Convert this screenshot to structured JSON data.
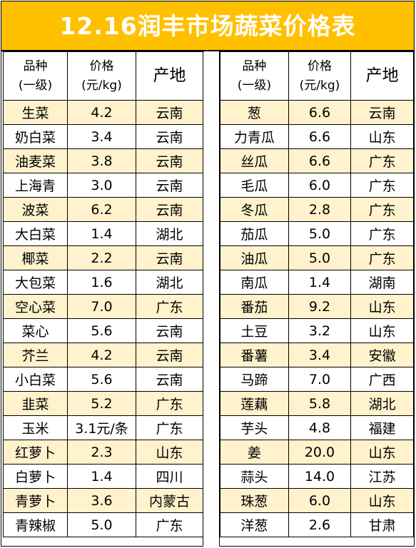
{
  "title": "12.16润丰市场蔬菜价格表",
  "colors": {
    "title_bg": "#ffc000",
    "row_shade": "#fff2cc"
  },
  "headers": {
    "variety_line1": "品种",
    "variety_line2": "(一级)",
    "price_line1": "价格",
    "price_line2": "(元/kg)",
    "origin": "产地"
  },
  "left_rows": [
    {
      "name": "生菜",
      "price": "4.2",
      "origin": "云南"
    },
    {
      "name": "奶白菜",
      "price": "3.4",
      "origin": "云南"
    },
    {
      "name": "油麦菜",
      "price": "3.8",
      "origin": "云南"
    },
    {
      "name": "上海青",
      "price": "3.0",
      "origin": "云南"
    },
    {
      "name": "波菜",
      "price": "6.2",
      "origin": "云南"
    },
    {
      "name": "大白菜",
      "price": "1.4",
      "origin": "湖北"
    },
    {
      "name": "椰菜",
      "price": "2.2",
      "origin": "云南"
    },
    {
      "name": "大包菜",
      "price": "1.6",
      "origin": "湖北"
    },
    {
      "name": "空心菜",
      "price": "7.0",
      "origin": "广东"
    },
    {
      "name": "菜心",
      "price": "5.6",
      "origin": "云南"
    },
    {
      "name": "芥兰",
      "price": "4.2",
      "origin": "云南"
    },
    {
      "name": "小白菜",
      "price": "5.6",
      "origin": "云南"
    },
    {
      "name": "韭菜",
      "price": "5.2",
      "origin": "广东"
    },
    {
      "name": "玉米",
      "price": "3.1元/条",
      "origin": "广东"
    },
    {
      "name": "红萝卜",
      "price": "2.3",
      "origin": "山东"
    },
    {
      "name": "白萝卜",
      "price": "1.4",
      "origin": "四川"
    },
    {
      "name": "青萝卜",
      "price": "3.6",
      "origin": "内蒙古"
    },
    {
      "name": "青辣椒",
      "price": "5.0",
      "origin": "广东"
    }
  ],
  "right_rows": [
    {
      "name": "葱",
      "price": "6.6",
      "origin": "云南"
    },
    {
      "name": "力青瓜",
      "price": "6.6",
      "origin": "山东"
    },
    {
      "name": "丝瓜",
      "price": "6.6",
      "origin": "广东"
    },
    {
      "name": "毛瓜",
      "price": "6.0",
      "origin": "广东"
    },
    {
      "name": "冬瓜",
      "price": "2.8",
      "origin": "广东"
    },
    {
      "name": "茄瓜",
      "price": "5.0",
      "origin": "广东"
    },
    {
      "name": "油瓜",
      "price": "5.0",
      "origin": "广东"
    },
    {
      "name": "南瓜",
      "price": "1.4",
      "origin": "湖南"
    },
    {
      "name": "番茄",
      "price": "9.2",
      "origin": "山东"
    },
    {
      "name": "土豆",
      "price": "3.2",
      "origin": "山东"
    },
    {
      "name": "番薯",
      "price": "3.4",
      "origin": "安徽"
    },
    {
      "name": "马蹄",
      "price": "7.0",
      "origin": "广西"
    },
    {
      "name": "莲藕",
      "price": "5.8",
      "origin": "湖北"
    },
    {
      "name": "芋头",
      "price": "4.8",
      "origin": "福建"
    },
    {
      "name": "姜",
      "price": "20.0",
      "origin": "山东"
    },
    {
      "name": "蒜头",
      "price": "14.0",
      "origin": "江苏"
    },
    {
      "name": "珠葱",
      "price": "6.0",
      "origin": "山东"
    },
    {
      "name": "洋葱",
      "price": "2.6",
      "origin": "甘肃"
    }
  ]
}
